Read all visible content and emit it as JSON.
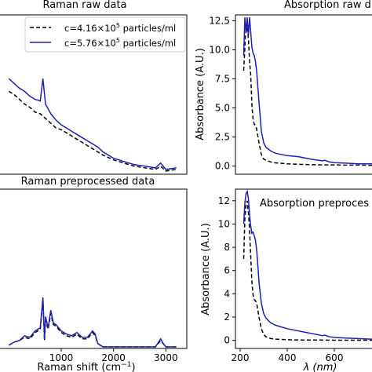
{
  "figure": {
    "panels": {
      "raman_raw": {
        "title": "Raman raw data"
      },
      "absorption_raw": {
        "title": "Absorption raw d"
      },
      "raman_pre": {
        "title": "Raman preprocessed data"
      },
      "absorption_pre": {
        "title": "Absorption preproces"
      }
    },
    "legend": {
      "series1": {
        "prefix": "c=4.16×10",
        "exp": "5",
        "suffix": " particles/ml"
      },
      "series2": {
        "prefix": "c=5.76×10",
        "exp": "5",
        "suffix": " particles/ml"
      }
    },
    "colors": {
      "series1": "#000000",
      "series2": "#1f1fb4",
      "frame": "#000000"
    },
    "xlabel_raman": {
      "text": "Raman shift (cm",
      "sup": "−1",
      "close": ")"
    },
    "xlabel_abs": "λ (nm)",
    "ylabel_abs": "Absorbance (A.U.)"
  },
  "chart_data": [
    {
      "type": "line",
      "title": "Raman raw data",
      "xlabel": "Raman shift (cm−1)",
      "xlim": [
        -200,
        3400
      ],
      "ylim": [
        0,
        1.0
      ],
      "x_ticks": [],
      "y_ticks": [],
      "legend_placement": "top-right",
      "series": [
        {
          "name": "c=4.16×10^5 particles/ml",
          "style": "dashed",
          "x": [
            0,
            100,
            200,
            300,
            400,
            500,
            600,
            700,
            800,
            900,
            1000,
            1100,
            1200,
            1300,
            1400,
            1500,
            1600,
            1700,
            1800,
            2000,
            2200,
            2400,
            2600,
            2800,
            2900,
            3000,
            3200
          ],
          "y": [
            0.52,
            0.5,
            0.47,
            0.44,
            0.42,
            0.39,
            0.38,
            0.35,
            0.32,
            0.29,
            0.28,
            0.26,
            0.24,
            0.22,
            0.2,
            0.18,
            0.16,
            0.14,
            0.12,
            0.09,
            0.07,
            0.05,
            0.04,
            0.03,
            0.05,
            0.02,
            0.03
          ]
        },
        {
          "name": "c=5.76×10^5 particles/ml",
          "style": "solid",
          "x": [
            0,
            100,
            200,
            300,
            400,
            500,
            600,
            650,
            700,
            800,
            900,
            1000,
            1100,
            1200,
            1300,
            1400,
            1500,
            1600,
            1700,
            1800,
            2000,
            2200,
            2400,
            2600,
            2800,
            2900,
            3000,
            3200
          ],
          "y": [
            0.6,
            0.57,
            0.54,
            0.52,
            0.49,
            0.47,
            0.46,
            0.6,
            0.44,
            0.38,
            0.34,
            0.31,
            0.29,
            0.27,
            0.25,
            0.23,
            0.21,
            0.19,
            0.17,
            0.14,
            0.1,
            0.08,
            0.06,
            0.05,
            0.04,
            0.07,
            0.03,
            0.04
          ]
        }
      ]
    },
    {
      "type": "line",
      "title": "Absorption raw d",
      "xlabel": "",
      "ylabel": "Absorbance (A.U.)",
      "xlim": [
        180,
        800
      ],
      "ylim": [
        -0.7,
        13
      ],
      "y_ticks": [
        0.0,
        2.5,
        5.0,
        7.5,
        10.0,
        12.5
      ],
      "series": [
        {
          "name": "c=4.16×10^5 particles/ml",
          "style": "dashed",
          "x": [
            215,
            222,
            228,
            235,
            240,
            245,
            250,
            255,
            260,
            265,
            270,
            280,
            290,
            300,
            310,
            330,
            350,
            400,
            450,
            500,
            550,
            600,
            650,
            700,
            750,
            800
          ],
          "y": [
            8.2,
            11.0,
            12.2,
            11.0,
            9.0,
            7.8,
            5.2,
            4.0,
            3.6,
            3.5,
            3.2,
            2.0,
            1.0,
            0.6,
            0.5,
            0.35,
            0.28,
            0.2,
            0.15,
            0.12,
            0.1,
            0.1,
            0.08,
            0.08,
            0.07,
            0.07
          ]
        },
        {
          "name": "c=5.76×10^5 particles/ml",
          "style": "solid",
          "x": [
            215,
            220,
            225,
            230,
            235,
            240,
            245,
            250,
            255,
            260,
            265,
            270,
            280,
            290,
            300,
            310,
            330,
            350,
            400,
            450,
            500,
            550,
            560,
            580,
            600,
            650,
            700,
            750,
            800
          ],
          "y": [
            9.5,
            12.8,
            11.5,
            12.8,
            11.2,
            12.8,
            11.5,
            10.2,
            9.7,
            9.5,
            9.0,
            8.2,
            5.5,
            3.0,
            2.0,
            1.6,
            1.3,
            1.1,
            0.9,
            0.8,
            0.6,
            0.45,
            0.5,
            0.35,
            0.3,
            0.25,
            0.2,
            0.2,
            0.2
          ]
        }
      ]
    },
    {
      "type": "line",
      "title": "Raman preprocessed data",
      "xlabel": "Raman shift (cm−1)",
      "xlim": [
        -200,
        3400
      ],
      "ylim": [
        0,
        1.0
      ],
      "x_ticks": [
        1000,
        2000,
        3000
      ],
      "y_ticks": [],
      "series": [
        {
          "name": "c=4.16×10^5 particles/ml",
          "style": "dashed",
          "x": [
            0,
            100,
            200,
            300,
            400,
            500,
            600,
            650,
            680,
            700,
            750,
            800,
            850,
            900,
            950,
            1000,
            1100,
            1200,
            1300,
            1400,
            1500,
            1600,
            1650,
            1700,
            1800,
            2000,
            2200,
            2400,
            2600,
            2800,
            2900,
            2950,
            3000,
            3200
          ],
          "y": [
            0.02,
            0.04,
            0.05,
            0.07,
            0.06,
            0.1,
            0.12,
            0.3,
            0.05,
            0.18,
            0.12,
            0.22,
            0.15,
            0.14,
            0.12,
            0.1,
            0.08,
            0.07,
            0.09,
            0.06,
            0.06,
            0.1,
            0.08,
            0.03,
            0.01,
            0.01,
            0.01,
            0.01,
            0.01,
            0.01,
            0.05,
            0.03,
            0.01,
            0.01
          ]
        },
        {
          "name": "c=5.76×10^5 particles/ml",
          "style": "solid",
          "x": [
            0,
            100,
            200,
            300,
            400,
            500,
            600,
            650,
            680,
            700,
            750,
            800,
            850,
            900,
            950,
            1000,
            1100,
            1200,
            1300,
            1400,
            1500,
            1600,
            1650,
            1700,
            1800,
            2000,
            2200,
            2400,
            2600,
            2800,
            2900,
            2950,
            3000,
            3200
          ],
          "y": [
            0.02,
            0.04,
            0.05,
            0.08,
            0.07,
            0.11,
            0.13,
            0.32,
            0.06,
            0.2,
            0.13,
            0.24,
            0.16,
            0.15,
            0.13,
            0.11,
            0.09,
            0.08,
            0.1,
            0.07,
            0.07,
            0.11,
            0.09,
            0.03,
            0.01,
            0.01,
            0.01,
            0.01,
            0.01,
            0.01,
            0.06,
            0.03,
            0.01,
            0.01
          ]
        }
      ]
    },
    {
      "type": "line",
      "title": "Absorption preproces",
      "xlabel": "λ (nm)",
      "ylabel": "Absorbance (A.U.)",
      "xlim": [
        180,
        800
      ],
      "ylim": [
        -0.7,
        13
      ],
      "x_ticks": [
        200,
        400,
        600
      ],
      "y_ticks": [
        0,
        2,
        4,
        6,
        8,
        10,
        12
      ],
      "series": [
        {
          "name": "c=4.16×10^5 particles/ml",
          "style": "dashed",
          "x": [
            215,
            220,
            225,
            230,
            235,
            240,
            245,
            250,
            255,
            260,
            265,
            270,
            280,
            290,
            300,
            310,
            330,
            350,
            400,
            450,
            500,
            550,
            600,
            650,
            700,
            750,
            800
          ],
          "y": [
            7.0,
            10.5,
            11.6,
            12.0,
            11.0,
            9.5,
            7.2,
            5.0,
            3.9,
            3.5,
            3.4,
            3.2,
            2.0,
            1.0,
            0.5,
            0.3,
            0.15,
            0.1,
            0.05,
            0.03,
            0.02,
            0.02,
            0.01,
            0.01,
            0.01,
            0.01,
            0.01
          ]
        },
        {
          "name": "c=5.76×10^5 particles/ml",
          "style": "solid",
          "x": [
            215,
            220,
            225,
            230,
            235,
            240,
            245,
            250,
            255,
            260,
            265,
            270,
            275,
            280,
            290,
            300,
            310,
            330,
            350,
            400,
            450,
            500,
            550,
            560,
            580,
            600,
            650,
            700,
            750,
            800
          ],
          "y": [
            10.0,
            11.8,
            12.6,
            12.8,
            12.2,
            10.8,
            9.8,
            9.2,
            9.3,
            9.0,
            8.6,
            7.8,
            6.5,
            5.0,
            3.2,
            2.3,
            1.9,
            1.5,
            1.3,
            1.0,
            0.8,
            0.6,
            0.4,
            0.45,
            0.3,
            0.25,
            0.2,
            0.15,
            0.1,
            0.1
          ]
        }
      ]
    }
  ]
}
